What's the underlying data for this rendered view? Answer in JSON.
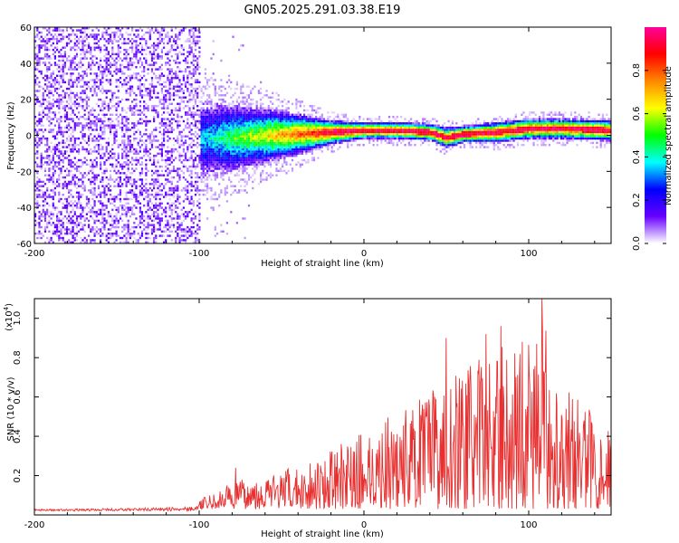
{
  "title": "GN05.2025.291.03.38.E19",
  "chart_data": [
    {
      "type": "heatmap",
      "name": "spectrogram",
      "xlabel": "Height of straight line (km)",
      "ylabel": "Frequency (Hz)",
      "xlim": [
        -200,
        150
      ],
      "ylim": [
        -60,
        60
      ],
      "xticks": [
        -200,
        -100,
        0,
        100
      ],
      "yticks": [
        60,
        40,
        20,
        0,
        -20,
        -40,
        -60
      ],
      "yticklabels": [
        "60",
        "40",
        "20",
        "0",
        "-20",
        "-40",
        "-60"
      ],
      "noise_region_km": [
        -200,
        -100
      ],
      "signal_track": {
        "x": [
          -100,
          -80,
          -60,
          -40,
          -20,
          0,
          20,
          40,
          50,
          60,
          80,
          100,
          120,
          150
        ],
        "freq_hz": [
          -3,
          -2,
          -1,
          0,
          1,
          2,
          2,
          1,
          -2,
          0,
          1,
          3,
          3,
          2
        ],
        "width_hz": [
          22,
          20,
          16,
          12,
          7,
          5,
          5,
          5,
          6,
          5,
          6,
          6,
          6,
          6
        ]
      },
      "colorbar": {
        "label": "Normalized spectral amplitude",
        "ticks": [
          0.0,
          0.2,
          0.4,
          0.6,
          0.8
        ],
        "ticklabels": [
          "0.0",
          "0.2",
          "0.4",
          "0.6",
          "0.8"
        ],
        "range": [
          0,
          1
        ],
        "colormap": [
          "#ffffff",
          "#6600ff",
          "#0000ff",
          "#00ffff",
          "#00ff00",
          "#ffff00",
          "#ff8800",
          "#ff0000",
          "#ff0099"
        ]
      }
    },
    {
      "type": "line",
      "name": "snr",
      "xlabel": "Height of straight line (km)",
      "ylabel": "SNR (10 * v/v)",
      "yscale_label": "(x10",
      "yscale_exp": "4",
      "xlim": [
        -200,
        150
      ],
      "ylim": [
        0,
        1.1
      ],
      "xticks": [
        -200,
        -100,
        0,
        100
      ],
      "yticks": [
        1.0,
        0.8,
        0.6,
        0.4,
        0.2
      ],
      "yticklabels": [
        "1.0",
        "0.8",
        "0.6",
        "0.4",
        "0.2"
      ],
      "color": "#e83030",
      "envelope": {
        "x": [
          -200,
          -150,
          -120,
          -100,
          -90,
          -80,
          -60,
          -40,
          -20,
          0,
          20,
          40,
          60,
          80,
          100,
          110,
          120,
          140,
          150
        ],
        "y": [
          0.03,
          0.035,
          0.04,
          0.05,
          0.08,
          0.14,
          0.17,
          0.22,
          0.3,
          0.4,
          0.5,
          0.6,
          0.72,
          0.82,
          0.85,
          0.95,
          0.65,
          0.5,
          0.42
        ]
      },
      "spikes": [
        {
          "x": -78,
          "y": 0.24
        },
        {
          "x": 50,
          "y": 0.9
        },
        {
          "x": 74,
          "y": 0.92
        },
        {
          "x": 83,
          "y": 0.96
        },
        {
          "x": 96,
          "y": 0.88
        },
        {
          "x": 108,
          "y": 1.1
        }
      ]
    }
  ]
}
